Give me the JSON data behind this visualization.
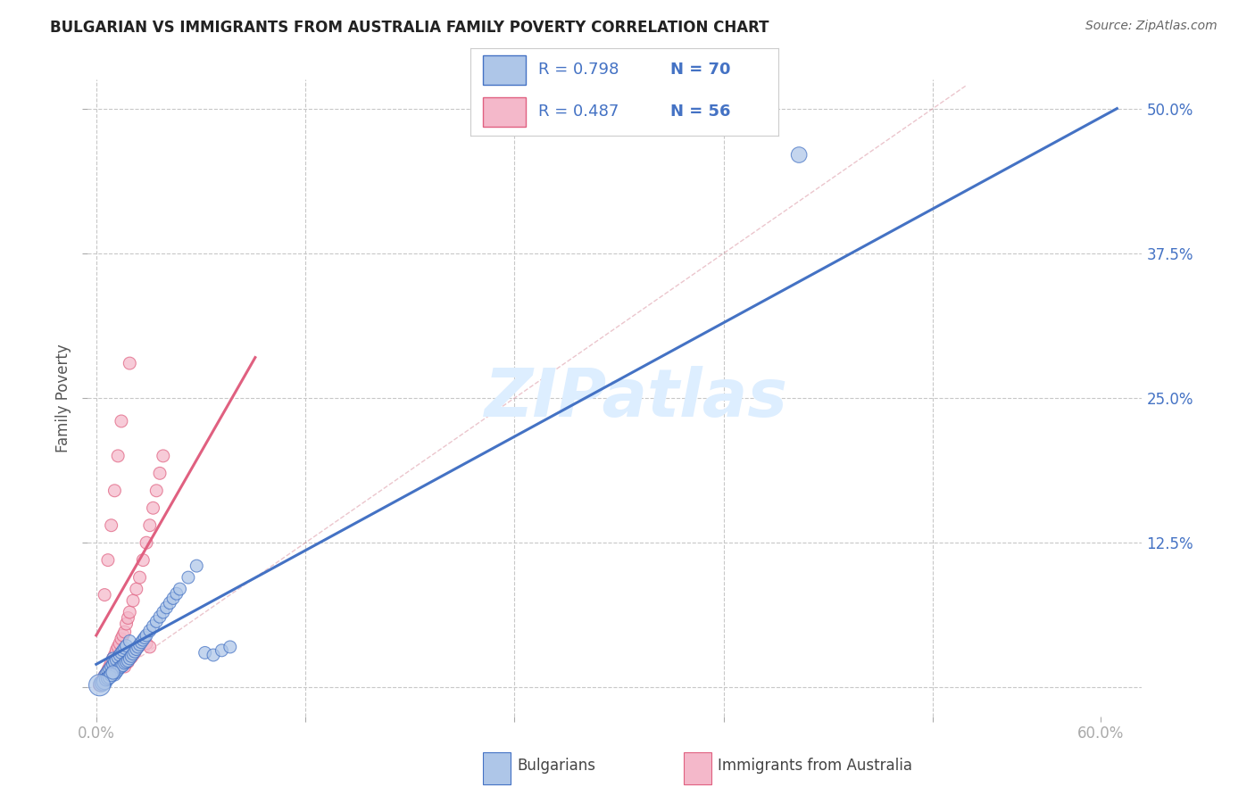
{
  "title": "BULGARIAN VS IMMIGRANTS FROM AUSTRALIA FAMILY POVERTY CORRELATION CHART",
  "source": "Source: ZipAtlas.com",
  "ylabel": "Family Poverty",
  "xlim": [
    -0.005,
    0.625
  ],
  "ylim": [
    -0.025,
    0.525
  ],
  "blue_r": "0.798",
  "blue_n": "70",
  "pink_r": "0.487",
  "pink_n": "56",
  "blue_scatter_x": [
    0.003,
    0.004,
    0.005,
    0.005,
    0.006,
    0.006,
    0.007,
    0.007,
    0.008,
    0.008,
    0.009,
    0.009,
    0.01,
    0.01,
    0.01,
    0.011,
    0.011,
    0.012,
    0.012,
    0.013,
    0.013,
    0.014,
    0.014,
    0.015,
    0.015,
    0.016,
    0.016,
    0.017,
    0.017,
    0.018,
    0.018,
    0.019,
    0.02,
    0.02,
    0.021,
    0.022,
    0.023,
    0.024,
    0.025,
    0.026,
    0.027,
    0.028,
    0.029,
    0.03,
    0.032,
    0.034,
    0.036,
    0.038,
    0.04,
    0.042,
    0.044,
    0.046,
    0.048,
    0.05,
    0.055,
    0.06,
    0.065,
    0.07,
    0.075,
    0.08,
    0.003,
    0.004,
    0.005,
    0.006,
    0.007,
    0.008,
    0.009,
    0.01,
    0.42,
    0.002
  ],
  "blue_scatter_y": [
    0.004,
    0.005,
    0.006,
    0.01,
    0.007,
    0.012,
    0.008,
    0.014,
    0.009,
    0.016,
    0.01,
    0.018,
    0.012,
    0.02,
    0.025,
    0.011,
    0.022,
    0.013,
    0.024,
    0.015,
    0.026,
    0.017,
    0.028,
    0.018,
    0.03,
    0.019,
    0.032,
    0.021,
    0.034,
    0.022,
    0.036,
    0.023,
    0.025,
    0.04,
    0.027,
    0.029,
    0.031,
    0.033,
    0.035,
    0.037,
    0.039,
    0.041,
    0.043,
    0.045,
    0.049,
    0.053,
    0.057,
    0.061,
    0.065,
    0.069,
    0.073,
    0.077,
    0.081,
    0.085,
    0.095,
    0.105,
    0.03,
    0.028,
    0.032,
    0.035,
    0.003,
    0.004,
    0.005,
    0.007,
    0.008,
    0.009,
    0.011,
    0.013,
    0.46,
    0.002
  ],
  "blue_scatter_sizes": [
    100,
    100,
    100,
    100,
    100,
    100,
    100,
    100,
    100,
    100,
    100,
    100,
    100,
    100,
    100,
    100,
    100,
    100,
    100,
    100,
    100,
    100,
    100,
    100,
    100,
    100,
    100,
    100,
    100,
    100,
    100,
    100,
    100,
    100,
    100,
    100,
    100,
    100,
    100,
    100,
    100,
    100,
    100,
    100,
    100,
    100,
    100,
    100,
    100,
    100,
    100,
    100,
    100,
    100,
    100,
    100,
    100,
    100,
    100,
    100,
    160,
    160,
    160,
    120,
    120,
    120,
    120,
    120,
    160,
    300
  ],
  "pink_scatter_x": [
    0.003,
    0.004,
    0.005,
    0.006,
    0.007,
    0.008,
    0.009,
    0.01,
    0.011,
    0.012,
    0.013,
    0.014,
    0.015,
    0.016,
    0.017,
    0.018,
    0.019,
    0.02,
    0.022,
    0.024,
    0.026,
    0.028,
    0.03,
    0.032,
    0.034,
    0.036,
    0.038,
    0.04,
    0.005,
    0.007,
    0.009,
    0.011,
    0.013,
    0.015,
    0.017,
    0.019,
    0.021,
    0.023,
    0.003,
    0.004,
    0.006,
    0.008,
    0.01,
    0.012,
    0.014,
    0.016,
    0.018,
    0.02,
    0.025,
    0.03,
    0.002,
    0.003,
    0.004,
    0.005,
    0.032,
    0.02
  ],
  "pink_scatter_y": [
    0.005,
    0.007,
    0.01,
    0.012,
    0.015,
    0.018,
    0.022,
    0.025,
    0.028,
    0.032,
    0.035,
    0.038,
    0.042,
    0.045,
    0.048,
    0.055,
    0.06,
    0.065,
    0.075,
    0.085,
    0.095,
    0.11,
    0.125,
    0.14,
    0.155,
    0.17,
    0.185,
    0.2,
    0.08,
    0.11,
    0.14,
    0.17,
    0.2,
    0.23,
    0.018,
    0.022,
    0.026,
    0.03,
    0.003,
    0.005,
    0.008,
    0.011,
    0.014,
    0.017,
    0.02,
    0.023,
    0.026,
    0.029,
    0.035,
    0.038,
    0.002,
    0.004,
    0.006,
    0.008,
    0.035,
    0.28
  ],
  "pink_scatter_sizes": [
    100,
    100,
    100,
    100,
    100,
    100,
    100,
    100,
    100,
    100,
    100,
    100,
    100,
    100,
    100,
    100,
    100,
    100,
    100,
    100,
    100,
    100,
    100,
    100,
    100,
    100,
    100,
    100,
    100,
    100,
    100,
    100,
    100,
    100,
    100,
    100,
    100,
    100,
    100,
    100,
    100,
    100,
    100,
    100,
    100,
    100,
    100,
    100,
    100,
    100,
    100,
    100,
    100,
    100,
    100,
    100
  ],
  "blue_line_x": [
    0.0,
    0.61
  ],
  "blue_line_y": [
    0.02,
    0.5
  ],
  "pink_line_x": [
    0.0,
    0.095
  ],
  "pink_line_y": [
    0.045,
    0.285
  ],
  "diag_line_x": [
    0.02,
    0.52
  ],
  "diag_line_y": [
    0.02,
    0.52
  ],
  "blue_color": "#4472c4",
  "blue_fill": "#aec6e8",
  "pink_color": "#e06080",
  "pink_fill": "#f4b8ca",
  "grid_color": "#c8c8c8",
  "title_color": "#222222",
  "axis_tick_color": "#4472c4",
  "legend_text_color": "#4472c4",
  "n_text_color": "#4472c4",
  "watermark_color": "#ddeeff",
  "background_color": "#ffffff"
}
